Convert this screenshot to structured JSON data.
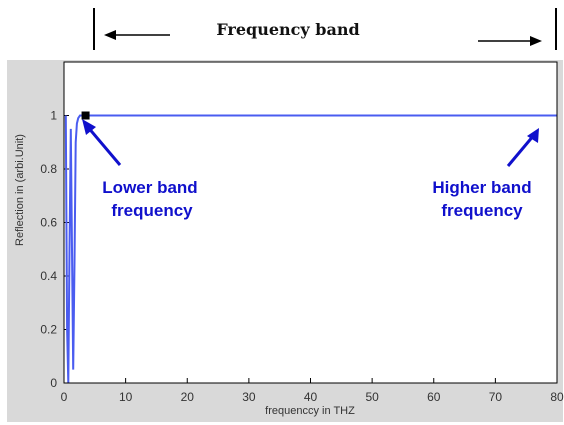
{
  "chart_data": {
    "type": "line",
    "xlabel": "frequenccy in THZ",
    "ylabel": "Reflection in (arbi.Unit)",
    "xlim": [
      0,
      80
    ],
    "ylim": [
      0,
      1.2
    ],
    "x_ticks": [
      0,
      10,
      20,
      30,
      40,
      50,
      60,
      70,
      80
    ],
    "y_ticks": [
      0,
      0.2,
      0.4,
      0.6,
      0.8,
      1
    ],
    "grid": false,
    "series": [
      {
        "color": "#4a5cf0",
        "x": [
          0.3,
          0.5,
          0.7,
          0.9,
          1.1,
          1.3,
          1.5,
          1.7,
          1.9,
          2.1,
          2.3,
          2.6,
          3.0,
          4,
          10,
          20,
          30,
          40,
          50,
          60,
          70,
          80
        ],
        "y": [
          1.0,
          0.2,
          0.0,
          0.5,
          0.95,
          0.5,
          0.05,
          0.45,
          0.9,
          0.97,
          0.99,
          1.0,
          1.0,
          1.0,
          1.0,
          1.0,
          1.0,
          1.0,
          1.0,
          1.0,
          1.0,
          1.0
        ]
      }
    ],
    "marker": {
      "x": 3.5,
      "y": 1.0
    },
    "annotations": {
      "band_title": "Frequency band",
      "lower_line1": "Lower band",
      "lower_line2": "frequency",
      "higher_line1": "Higher band",
      "higher_line2": "frequency"
    }
  }
}
